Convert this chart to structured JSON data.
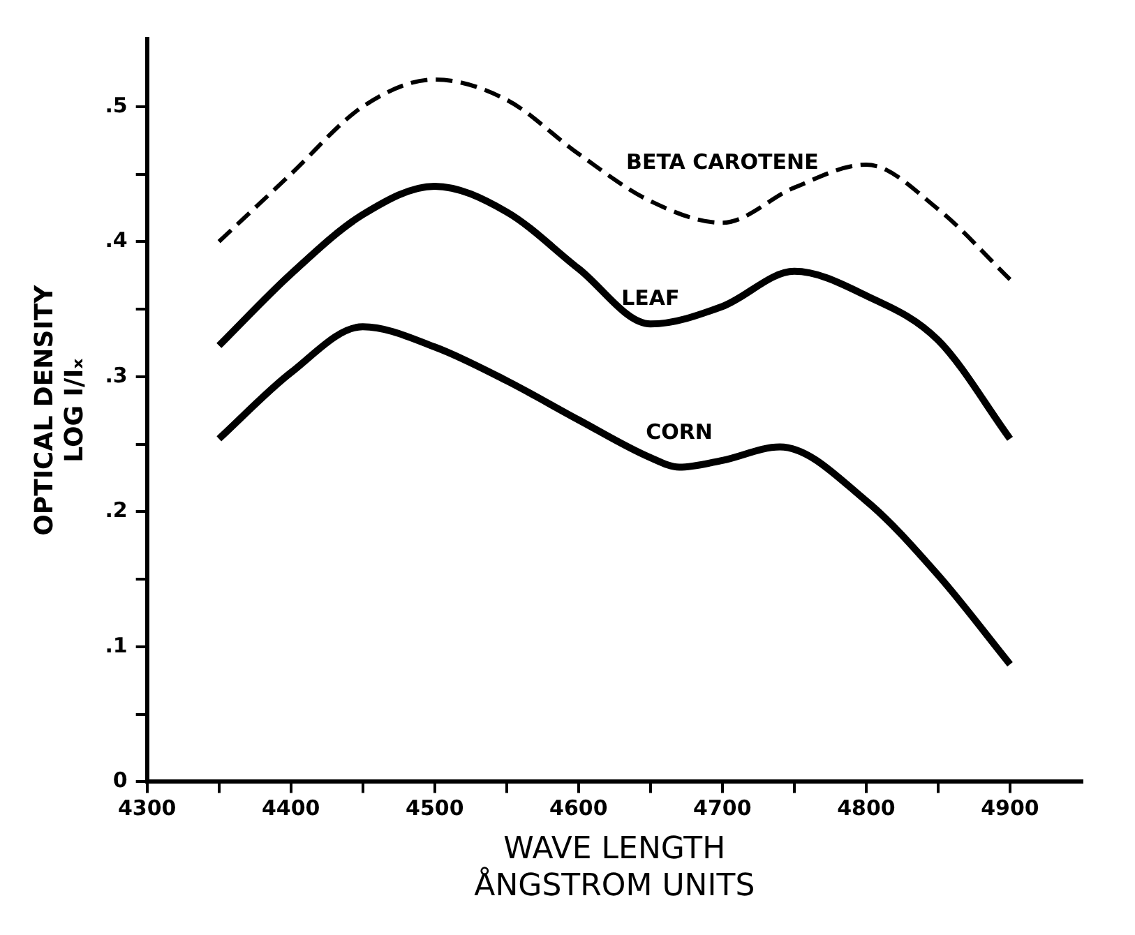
{
  "chart_data": {
    "type": "line",
    "xlabel": "WAVE LENGTH\nÅNGSTROM UNITS",
    "ylabel": "OPTICAL DENSITY\nLOG I/Iₓ",
    "x": [
      4350,
      4400,
      4450,
      4500,
      4550,
      4600,
      4650,
      4700,
      4750,
      4800,
      4850,
      4900
    ],
    "series": [
      {
        "name": "BETA CAROTENE",
        "color": "#000000",
        "line_style": "dashed",
        "values": [
          0.4,
          0.45,
          0.5,
          0.52,
          0.505,
          0.465,
          0.43,
          0.414,
          0.44,
          0.457,
          0.424,
          0.372
        ]
      },
      {
        "name": "LEAF",
        "color": "#000000",
        "line_style": "solid",
        "values": [
          0.323,
          0.376,
          0.42,
          0.441,
          0.422,
          0.38,
          0.339,
          0.352,
          0.378,
          0.36,
          0.327,
          0.254
        ]
      },
      {
        "name": "CORN",
        "color": "#000000",
        "line_style": "solid",
        "x": [
          4350,
          4400,
          4450,
          4500,
          4550,
          4600,
          4650,
          4670,
          4700,
          4740,
          4800,
          4850,
          4900
        ],
        "values": [
          0.254,
          0.303,
          0.337,
          0.322,
          0.297,
          0.268,
          0.24,
          0.233,
          0.238,
          0.248,
          0.208,
          0.153,
          0.087
        ]
      }
    ],
    "xlim": [
      4300,
      4950
    ],
    "xticks": [
      4300,
      {
        "value": 4350,
        "label": null
      },
      4400,
      {
        "value": 4450,
        "label": null
      },
      4500,
      {
        "value": 4550,
        "label": null
      },
      4600,
      {
        "value": 4650,
        "label": null
      },
      4700,
      {
        "value": 4750,
        "label": null
      },
      4800,
      {
        "value": 4850,
        "label": null
      },
      4900
    ],
    "ylim": [
      0,
      0.55
    ],
    "yticks": [
      0,
      {
        "value": 0.05,
        "label": null
      },
      {
        "value": 0.1,
        "label": ".1"
      },
      {
        "value": 0.15,
        "label": null
      },
      {
        "value": 0.2,
        "label": ".2"
      },
      {
        "value": 0.25,
        "label": null
      },
      {
        "value": 0.3,
        "label": ".3"
      },
      {
        "value": 0.35,
        "label": null
      },
      {
        "value": 0.4,
        "label": ".4"
      },
      {
        "value": 0.45,
        "label": null
      },
      {
        "value": 0.5,
        "label": ".5"
      }
    ],
    "grid": false,
    "legend": false,
    "marker": "none"
  }
}
